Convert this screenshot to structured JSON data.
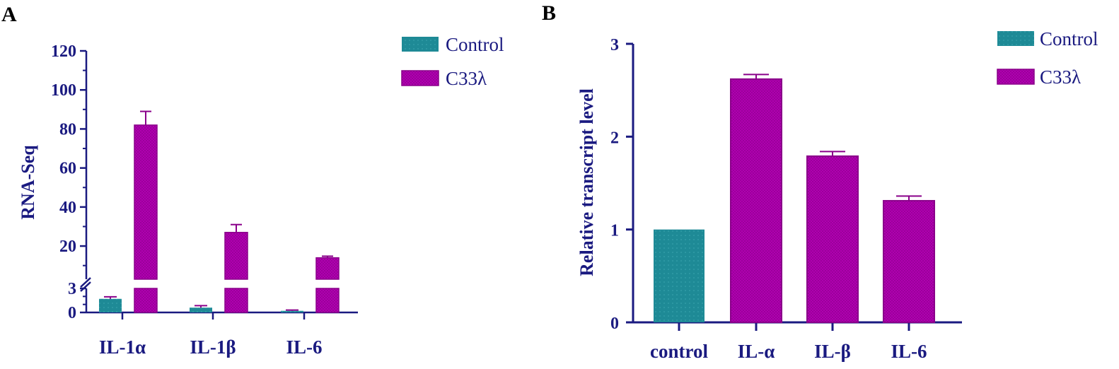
{
  "chart_data": [
    {
      "panel": "A",
      "type": "bar",
      "ylabel": "RNA-Seq",
      "categories": [
        "IL-1α",
        "IL-1β",
        "IL-6"
      ],
      "series": [
        {
          "name": "Control",
          "values": [
            1.7,
            0.6,
            0.2
          ],
          "errors": [
            0.25,
            0.25,
            0.1
          ]
        },
        {
          "name": "C33λ",
          "values": [
            82,
            27,
            14
          ],
          "errors": [
            7,
            4,
            0.8
          ]
        }
      ],
      "y_axis_break": {
        "lower_range": [
          0,
          3
        ],
        "upper_range": [
          3,
          120
        ]
      },
      "yticks": [
        0,
        3,
        20,
        40,
        60,
        80,
        100,
        120
      ],
      "legend": "top-right"
    },
    {
      "panel": "B",
      "type": "bar",
      "ylabel": "Relative transcript level",
      "categories": [
        "control",
        "IL-α",
        "IL-β",
        "IL-6"
      ],
      "series": [
        {
          "name": "Control",
          "values": [
            1.0,
            null,
            null,
            null
          ],
          "errors": [
            0,
            null,
            null,
            null
          ]
        },
        {
          "name": "C33λ",
          "values": [
            null,
            2.62,
            1.79,
            1.31
          ],
          "errors": [
            null,
            0.05,
            0.05,
            0.05
          ]
        }
      ],
      "ylim": [
        0,
        3
      ],
      "yticks": [
        0,
        1,
        2,
        3
      ],
      "legend": "top-right"
    }
  ],
  "colors": {
    "control": "#1e8a96",
    "treated": "#b000b0",
    "axis": "#1a1a80",
    "errorbar": "#8a008a"
  }
}
